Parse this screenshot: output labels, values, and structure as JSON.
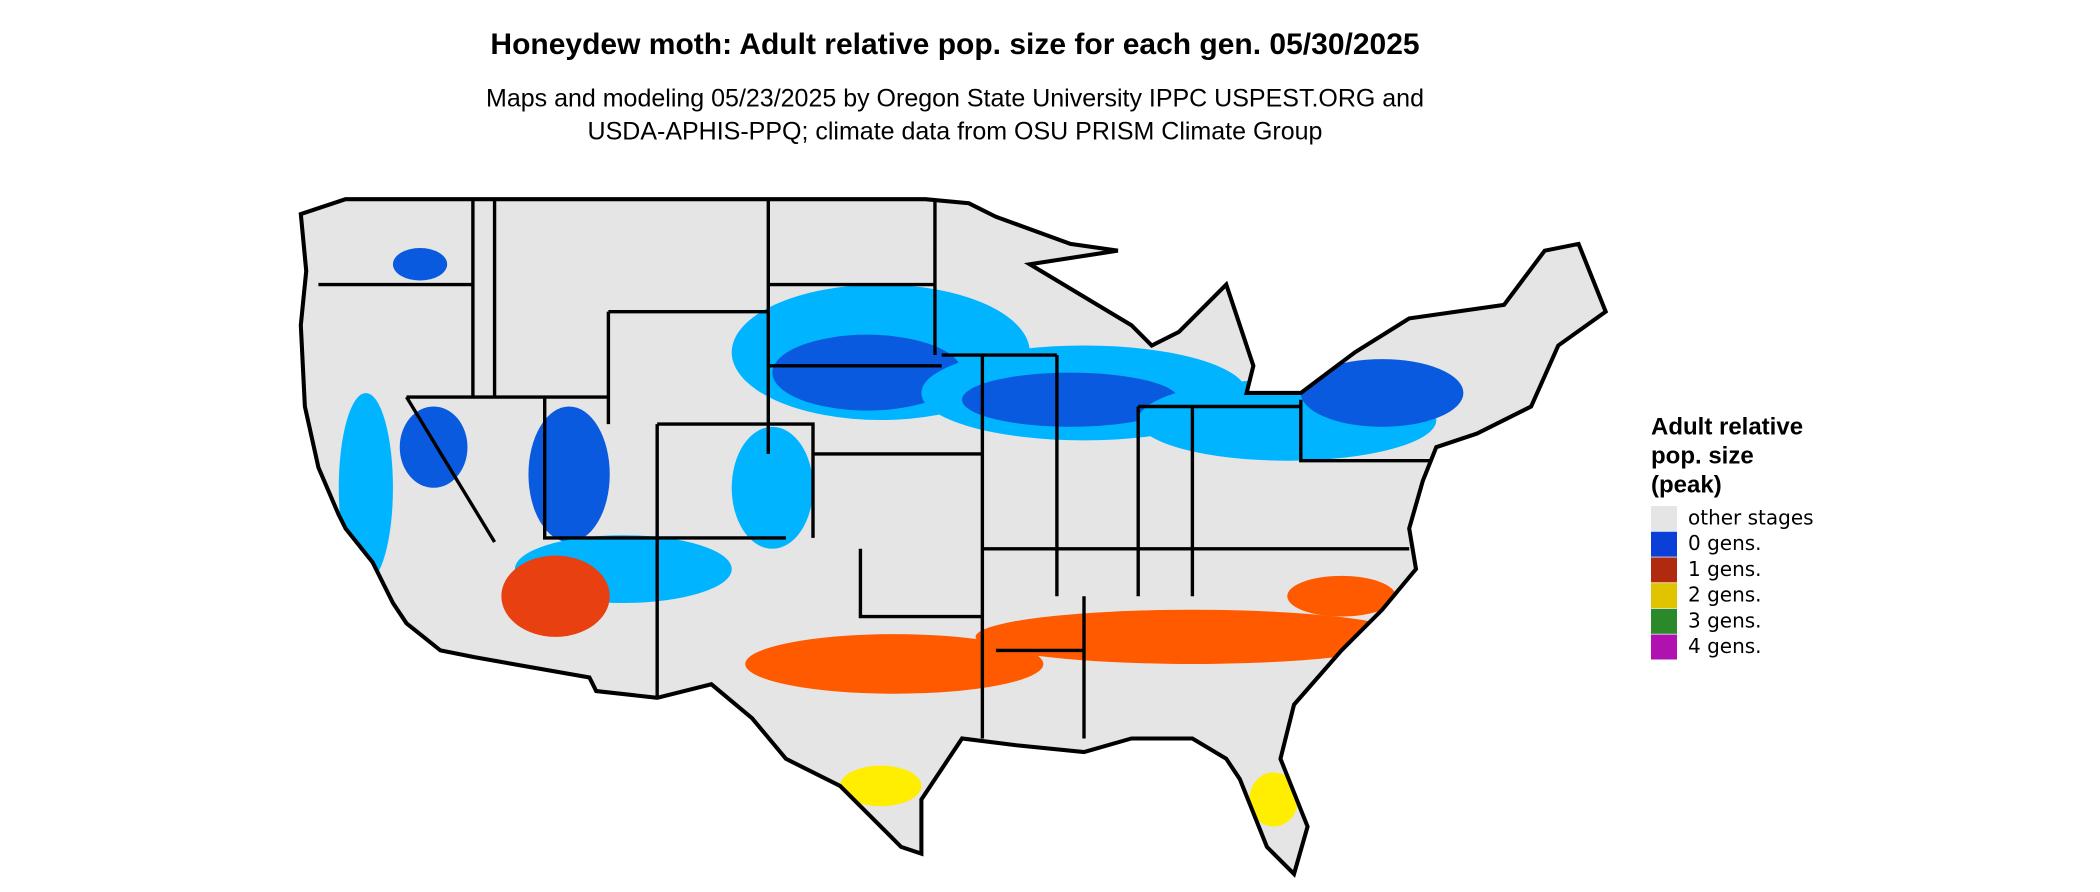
{
  "title": "Honeydew moth: Adult relative pop. size for each gen. 05/30/2025",
  "subtitle": [
    "Maps and modeling 05/23/2025 by Oregon State University IPPC USPEST.ORG and",
    "USDA-APHIS-PPQ; climate data from OSU PRISM Climate Group"
  ],
  "legend": {
    "title": [
      "Adult relative",
      "pop. size",
      "(peak)"
    ],
    "items": [
      {
        "label": "other stages",
        "color": "#e5e5e5"
      },
      {
        "label": "0 gens.",
        "color": "#0a3fd8"
      },
      {
        "label": "1 gens.",
        "color": "#b02a10"
      },
      {
        "label": "2 gens.",
        "color": "#e0c400"
      },
      {
        "label": "3 gens.",
        "color": "#2a8a2a"
      },
      {
        "label": "4 gens.",
        "color": "#b012b0"
      }
    ]
  }
}
